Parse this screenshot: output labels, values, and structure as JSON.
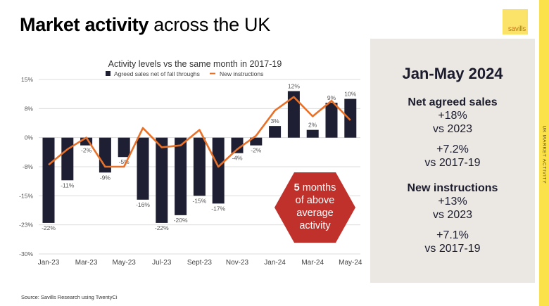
{
  "page": {
    "title_bold": "Market activity",
    "title_rest": " across the UK",
    "logo_text": "savills",
    "side_label": "UK MARKET ACTIVITY",
    "source": "Source: Savills Research using TwentyCi",
    "colors": {
      "accent_yellow": "#fbe14a",
      "logo_yellow": "#fbe36a",
      "bar": "#1f1f33",
      "line": "#e8712a",
      "hexagon": "#c0312c",
      "panel": "#ebe7e3"
    }
  },
  "panel": {
    "period": "Jan-May 2024",
    "sections": [
      {
        "heading": "Net agreed sales",
        "lines": [
          "+18%",
          "vs 2023"
        ],
        "extra": [
          "+7.2%",
          "vs 2017-19"
        ]
      },
      {
        "heading": "New instructions",
        "lines": [
          "+13%",
          "vs 2023"
        ],
        "extra": [
          "+7.1%",
          "vs 2017-19"
        ]
      }
    ]
  },
  "callout": {
    "bold": "5",
    "text_line1": " months",
    "text_line2": "of above",
    "text_line3": "average",
    "text_line4": "activity"
  },
  "chart_data": {
    "type": "bar",
    "title": "Activity levels vs the same month in 2017-19",
    "xlabel": "",
    "ylabel": "",
    "ylim": [
      -30,
      15
    ],
    "yticks": [
      15,
      7.5,
      0,
      -7.5,
      -15,
      -22.5,
      -30
    ],
    "ytick_labels": [
      "15%",
      "8%",
      "0%",
      "-8%",
      "-15%",
      "-23%",
      "-30%"
    ],
    "grid": true,
    "legend_position": "top-center",
    "categories": [
      "Jan-23",
      "Feb-23",
      "Mar-23",
      "Apr-23",
      "May-23",
      "Jun-23",
      "Jul-23",
      "Aug-23",
      "Sept-23",
      "Oct-23",
      "Nov-23",
      "Dec-23",
      "Jan-24",
      "Feb-24",
      "Mar-24",
      "Apr-24",
      "May-24"
    ],
    "xtick_labels": [
      "Jan-23",
      "",
      "Mar-23",
      "",
      "May-23",
      "",
      "Jul-23",
      "",
      "Sept-23",
      "",
      "Nov-23",
      "",
      "Jan-24",
      "",
      "Mar-24",
      "",
      "May-24"
    ],
    "series": [
      {
        "name": "Agreed sales net of fall throughs",
        "type": "bar",
        "values": [
          -22,
          -11,
          -2,
          -9,
          -5,
          -16,
          -22,
          -20,
          -15,
          -17,
          -4,
          -2,
          3,
          12,
          2,
          9,
          10
        ],
        "labels": [
          "-22%",
          "-11%",
          "-2%",
          "-9%",
          "-5%",
          "-16%",
          "-22%",
          "-20%",
          "-15%",
          "-17%",
          "-4%",
          "-2%",
          "3%",
          "12%",
          "2%",
          "9%",
          "10%"
        ]
      },
      {
        "name": "New instructions",
        "type": "line",
        "values": [
          -7,
          -3,
          0,
          -7.5,
          -7.5,
          2.5,
          -2.5,
          -2,
          2,
          -7.5,
          -3,
          0.5,
          7,
          10.5,
          5.5,
          9.5,
          4.5
        ]
      }
    ]
  }
}
